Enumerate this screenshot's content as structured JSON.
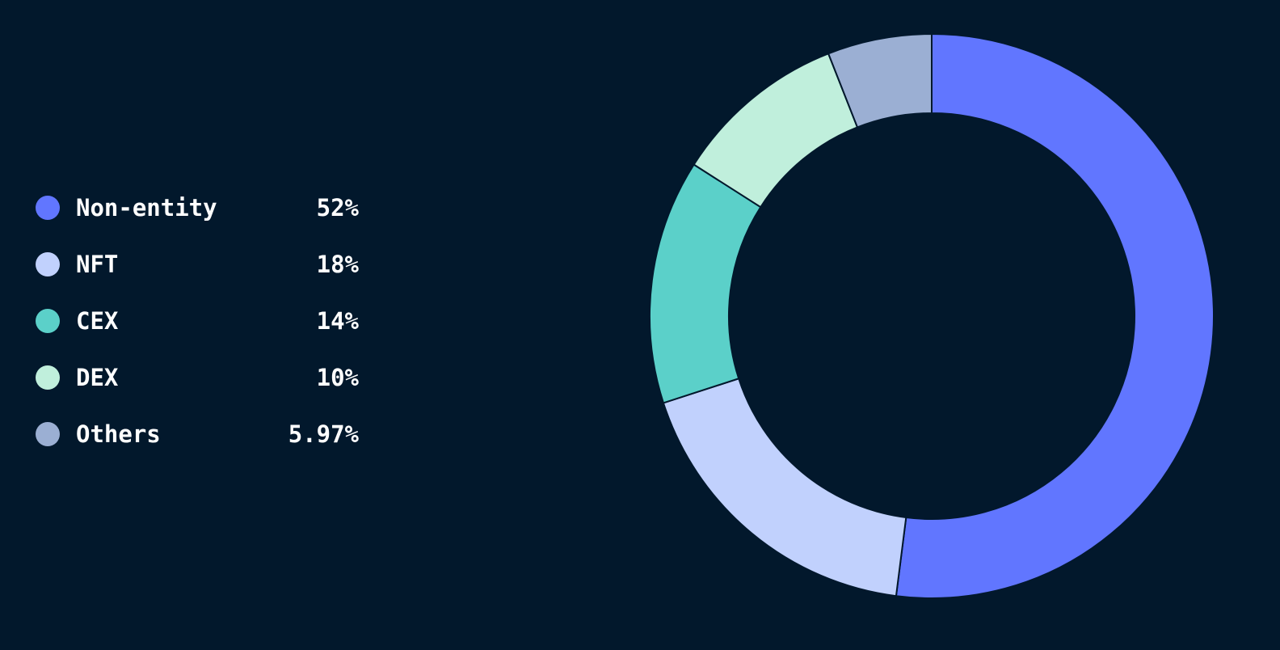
{
  "chart_data": {
    "type": "pie",
    "variant": "donut",
    "categories": [
      "Non-entity",
      "NFT",
      "CEX",
      "DEX",
      "Others"
    ],
    "values": [
      52,
      18,
      14,
      10,
      5.97
    ],
    "labels": [
      "52%",
      "18%",
      "14%",
      "10%",
      "5.97%"
    ],
    "colors": [
      "#6176ff",
      "#c1d1fd",
      "#5bd0c9",
      "#c0efdc",
      "#9bafd3"
    ],
    "legend_position": "left"
  },
  "colors": {
    "background": "#02182c",
    "text": "#ffffff",
    "slice_border": "#02182c"
  }
}
